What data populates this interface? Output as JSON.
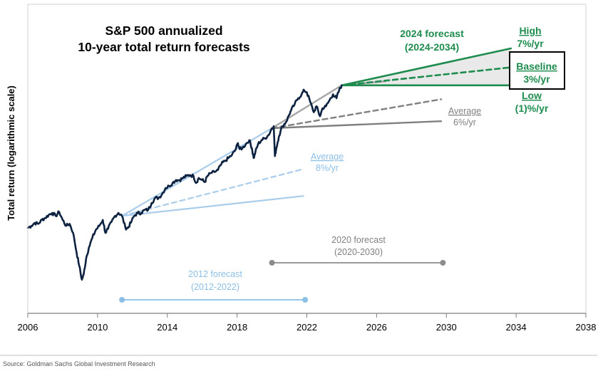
{
  "chart_data": {
    "type": "line",
    "title_line1": "S&P 500 annualized",
    "title_line2": "10-year total return forecasts",
    "ylabel": "Total return (logarithmic scale)",
    "y_scale": "log",
    "x_ticks": [
      2006,
      2010,
      2014,
      2018,
      2022,
      2026,
      2030,
      2034,
      2038
    ],
    "xlim": [
      2006,
      2038
    ],
    "grid": false,
    "colors": {
      "history": "#0d2240",
      "forecast_2024": "#1e8c4e",
      "forecast_2020": "#8c8c8c",
      "forecast_2012": "#a9cdea",
      "band_fill": "#e9e9e9",
      "axis": "#888888"
    },
    "history": [
      [
        2006.0,
        0.0
      ],
      [
        2006.2,
        0.02
      ],
      [
        2006.4,
        0.05
      ],
      [
        2006.6,
        0.04
      ],
      [
        2006.8,
        0.08
      ],
      [
        2007.0,
        0.1
      ],
      [
        2007.2,
        0.13
      ],
      [
        2007.4,
        0.15
      ],
      [
        2007.6,
        0.12
      ],
      [
        2007.8,
        0.16
      ],
      [
        2008.0,
        0.08
      ],
      [
        2008.2,
        0.02
      ],
      [
        2008.4,
        0.04
      ],
      [
        2008.6,
        -0.05
      ],
      [
        2008.8,
        -0.25
      ],
      [
        2008.95,
        -0.38
      ],
      [
        2009.1,
        -0.52
      ],
      [
        2009.2,
        -0.47
      ],
      [
        2009.35,
        -0.3
      ],
      [
        2009.5,
        -0.2
      ],
      [
        2009.7,
        -0.1
      ],
      [
        2009.9,
        -0.02
      ],
      [
        2010.1,
        0.02
      ],
      [
        2010.3,
        0.08
      ],
      [
        2010.45,
        -0.05
      ],
      [
        2010.6,
        -0.01
      ],
      [
        2010.8,
        0.06
      ],
      [
        2011.0,
        0.12
      ],
      [
        2011.2,
        0.15
      ],
      [
        2011.4,
        0.12
      ],
      [
        2011.6,
        0.0
      ],
      [
        2011.75,
        0.0
      ],
      [
        2011.9,
        0.05
      ],
      [
        2012.1,
        0.12
      ],
      [
        2012.3,
        0.15
      ],
      [
        2012.5,
        0.15
      ],
      [
        2012.7,
        0.18
      ],
      [
        2012.9,
        0.18
      ],
      [
        2013.1,
        0.25
      ],
      [
        2013.3,
        0.3
      ],
      [
        2013.5,
        0.3
      ],
      [
        2013.7,
        0.34
      ],
      [
        2013.9,
        0.4
      ],
      [
        2014.1,
        0.42
      ],
      [
        2014.3,
        0.45
      ],
      [
        2014.5,
        0.48
      ],
      [
        2014.7,
        0.48
      ],
      [
        2014.9,
        0.5
      ],
      [
        2015.1,
        0.52
      ],
      [
        2015.3,
        0.53
      ],
      [
        2015.5,
        0.52
      ],
      [
        2015.65,
        0.45
      ],
      [
        2015.8,
        0.5
      ],
      [
        2016.0,
        0.48
      ],
      [
        2016.15,
        0.46
      ],
      [
        2016.3,
        0.52
      ],
      [
        2016.5,
        0.55
      ],
      [
        2016.7,
        0.56
      ],
      [
        2016.9,
        0.58
      ],
      [
        2017.1,
        0.64
      ],
      [
        2017.3,
        0.67
      ],
      [
        2017.5,
        0.7
      ],
      [
        2017.7,
        0.73
      ],
      [
        2017.9,
        0.78
      ],
      [
        2018.05,
        0.85
      ],
      [
        2018.15,
        0.79
      ],
      [
        2018.3,
        0.8
      ],
      [
        2018.5,
        0.84
      ],
      [
        2018.7,
        0.88
      ],
      [
        2018.85,
        0.8
      ],
      [
        2018.95,
        0.7
      ],
      [
        2019.05,
        0.76
      ],
      [
        2019.2,
        0.84
      ],
      [
        2019.4,
        0.88
      ],
      [
        2019.6,
        0.9
      ],
      [
        2019.8,
        0.93
      ],
      [
        2020.0,
        1.0
      ],
      [
        2020.1,
        1.02
      ],
      [
        2020.17,
        0.72
      ],
      [
        2020.25,
        0.8
      ],
      [
        2020.4,
        0.92
      ],
      [
        2020.6,
        1.02
      ],
      [
        2020.8,
        1.06
      ],
      [
        2020.95,
        1.12
      ],
      [
        2021.1,
        1.18
      ],
      [
        2021.3,
        1.24
      ],
      [
        2021.5,
        1.3
      ],
      [
        2021.7,
        1.34
      ],
      [
        2021.85,
        1.38
      ],
      [
        2022.0,
        1.36
      ],
      [
        2022.2,
        1.26
      ],
      [
        2022.4,
        1.16
      ],
      [
        2022.55,
        1.22
      ],
      [
        2022.75,
        1.12
      ],
      [
        2022.9,
        1.2
      ],
      [
        2023.1,
        1.22
      ],
      [
        2023.3,
        1.28
      ],
      [
        2023.5,
        1.34
      ],
      [
        2023.7,
        1.3
      ],
      [
        2023.85,
        1.38
      ],
      [
        2024.0,
        1.43
      ]
    ],
    "forecasts": [
      {
        "label": "2024 forecast",
        "period": "(2024-2034)",
        "start": [
          2024.0,
          1.43
        ],
        "high": {
          "label": "High",
          "rate": "7%/yr",
          "end": [
            2033.7,
            1.8
          ]
        },
        "baseline": {
          "label": "Baseline",
          "rate": "3%/yr",
          "end": [
            2033.7,
            1.61
          ]
        },
        "low": {
          "label": "Low",
          "rate": "(1)%/yr",
          "end": [
            2033.7,
            1.43
          ]
        },
        "average": {
          "end": [
            2026.5,
            1.47
          ]
        }
      },
      {
        "label": "2020 forecast",
        "period": "(2020-2030)",
        "start": [
          2020.0,
          1.0
        ],
        "average": {
          "label": "Average",
          "rate": "6%/yr",
          "end": [
            2029.7,
            1.29
          ]
        },
        "low": {
          "end": [
            2029.7,
            1.07
          ]
        },
        "high": {
          "end": [
            2024.0,
            1.43
          ]
        },
        "span": [
          2020.0,
          2029.8
        ]
      },
      {
        "label": "2012 forecast",
        "period": "(2012-2022)",
        "start": [
          2011.4,
          0.12
        ],
        "average": {
          "label": "Average",
          "rate": "8%/yr",
          "end": [
            2021.8,
            0.59
          ]
        },
        "low": {
          "end": [
            2021.8,
            0.32
          ]
        },
        "high": {
          "end": [
            2020.0,
            1.0
          ]
        },
        "span": [
          2011.4,
          2021.9
        ]
      }
    ]
  },
  "footer": {
    "source": "Source: Goldman Sachs Global Investment Research"
  }
}
